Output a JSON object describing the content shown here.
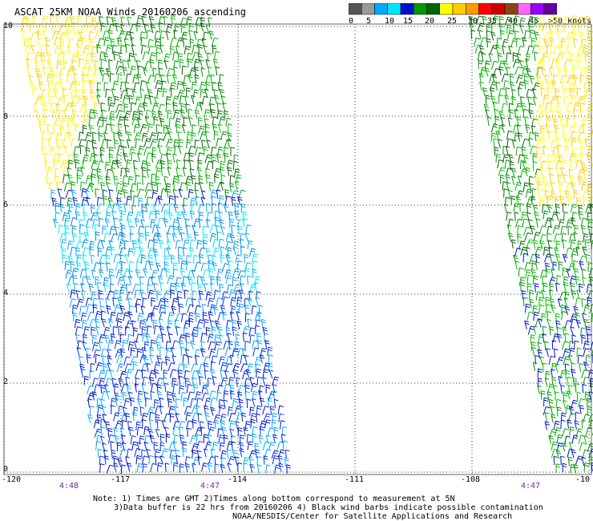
{
  "title": "ASCAT 25KM NOAA Winds 20160206 ascending",
  "legend": {
    "colors": [
      "#555555",
      "#9a9a9a",
      "#00aaff",
      "#00e5ff",
      "#0011cc",
      "#009900",
      "#006600",
      "#ffff00",
      "#ffcc00",
      "#ff9900",
      "#ff0000",
      "#cc0000",
      "#8b4513",
      "#ff66ff",
      "#9900ff",
      "#660099"
    ],
    "labels": [
      "0",
      "5",
      "10",
      "15",
      "20",
      "25",
      "30",
      "35",
      "40",
      "45",
      ">50 knots"
    ]
  },
  "axes": {
    "lat_labels": [
      "10",
      "8",
      "6",
      "4",
      "2",
      "0"
    ],
    "lon_labels": [
      "-120",
      "-117",
      "-114",
      "-111",
      "-108",
      "-10"
    ]
  },
  "times": [
    "4:48",
    "4:47",
    "4:47"
  ],
  "notes": [
    "Note: 1) Times are GMT 2)Times along bottom correspond to measurement at 5N",
    "3)Data buffer is 22 hrs from 20160206 4) Black wind barbs indicate possible contamination",
    "NOAA/NESDIS/Center for Satellite Applications and Research"
  ]
}
